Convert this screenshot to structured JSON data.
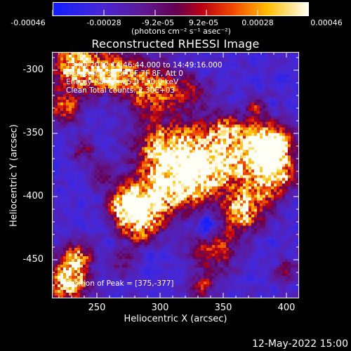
{
  "colorbar": {
    "labels": [
      "-0.00046",
      "-0.00028",
      "-9.2e-05",
      "9.2e-05",
      "0.00028",
      "0.00046"
    ],
    "unit": "(photons cm⁻² s⁻¹ asec⁻²)",
    "colors": [
      "#1020ff",
      "#5010c0",
      "#600060",
      "#c00000",
      "#ff6000",
      "#ffd000",
      "#ffffff"
    ]
  },
  "title": "Reconstructed RHESSI Image",
  "info": {
    "line1": "13-Jul-2012 14:46:44.000 to 14:49:16.000",
    "line2": "Detectors: 3F 5F 6F 7F 8F, Att 0",
    "line3": "Energy Range: 25.0 - 50.0 keV",
    "line4": "Clean     Total counts: 2.30E+03"
  },
  "peak": "Position of Peak = [375,-377]",
  "axes": {
    "xlabel": "Heliocentric X (arcsec)",
    "ylabel": "Heliocentric Y (arcsec)",
    "xticks": [
      "250",
      "300",
      "350",
      "400"
    ],
    "yticks": [
      "-300",
      "-350",
      "-400",
      "-450"
    ],
    "xlim": [
      217,
      412
    ],
    "ylim": [
      -478,
      -283
    ]
  },
  "datestamp": "12-May-2022 15:00"
}
